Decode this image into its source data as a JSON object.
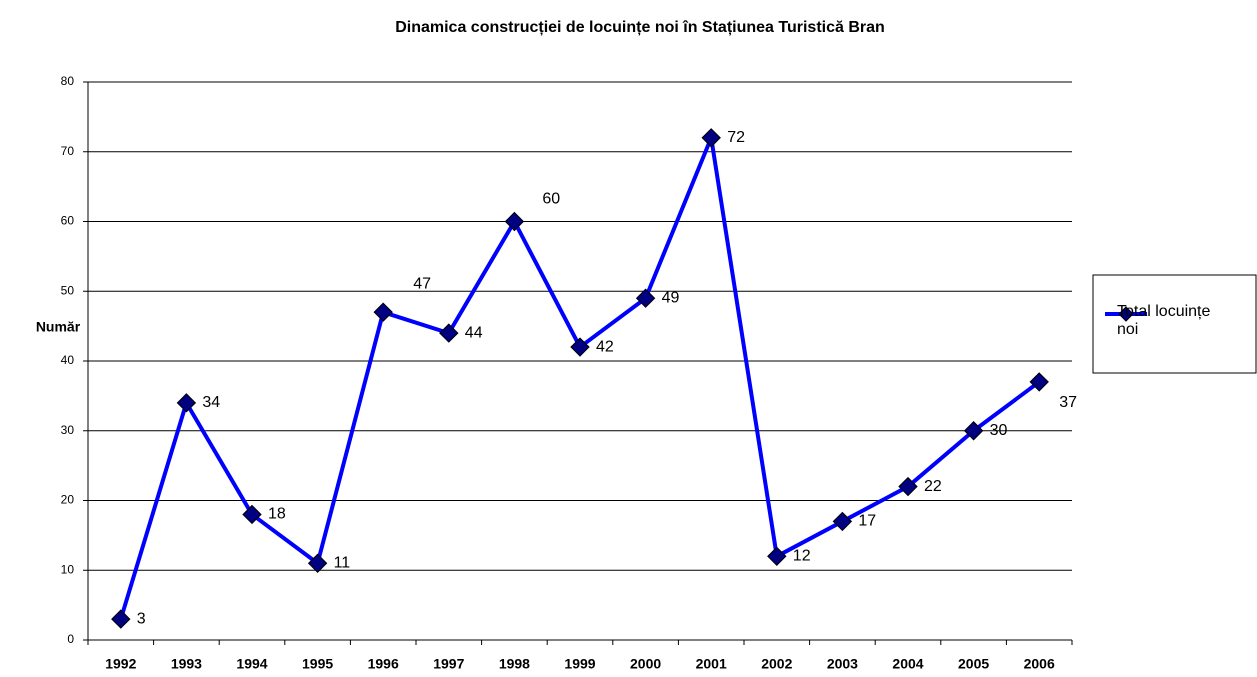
{
  "chart_data": {
    "type": "line",
    "title": "Dinamica construcției de locuințe noi în Stațiunea Turistică Bran",
    "y_label": "Număr",
    "categories": [
      "1992",
      "1993",
      "1994",
      "1995",
      "1996",
      "1997",
      "1998",
      "1999",
      "2000",
      "2001",
      "2002",
      "2003",
      "2004",
      "2005",
      "2006"
    ],
    "series": [
      {
        "name": "Total locuințe noi",
        "color": "#0000ff",
        "marker_color": "#000080",
        "values": [
          3,
          34,
          18,
          11,
          47,
          44,
          60,
          42,
          49,
          72,
          12,
          17,
          22,
          30,
          37
        ]
      }
    ],
    "ylim": [
      0,
      80
    ],
    "yticks": [
      0,
      10,
      20,
      30,
      40,
      50,
      60,
      70,
      80
    ],
    "grid": true,
    "legend": "right"
  }
}
